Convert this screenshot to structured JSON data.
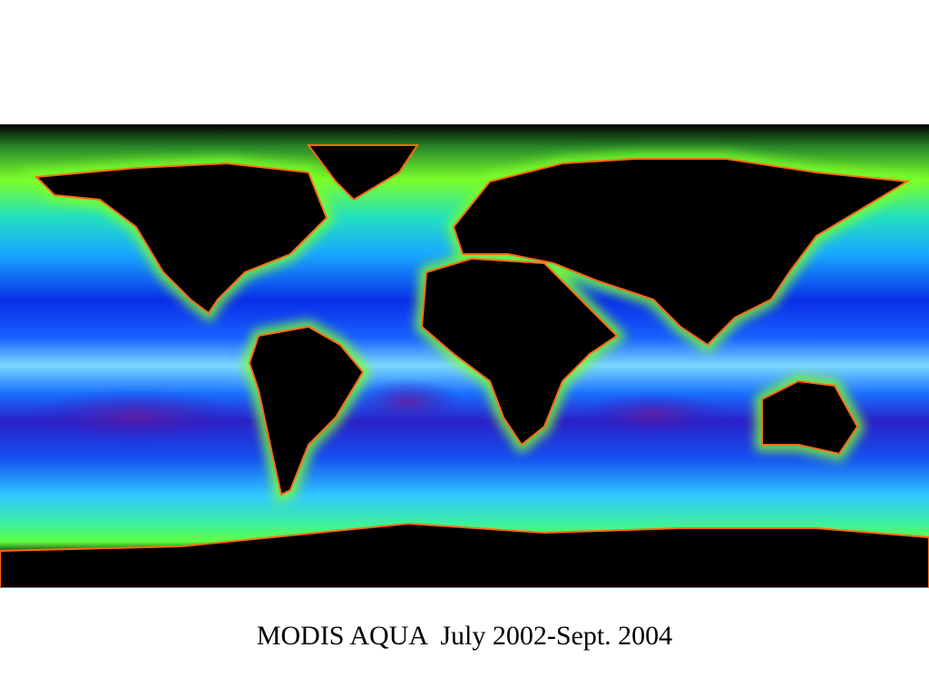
{
  "caption": "MODIS AQUA  July 2002-Sept. 2004"
}
